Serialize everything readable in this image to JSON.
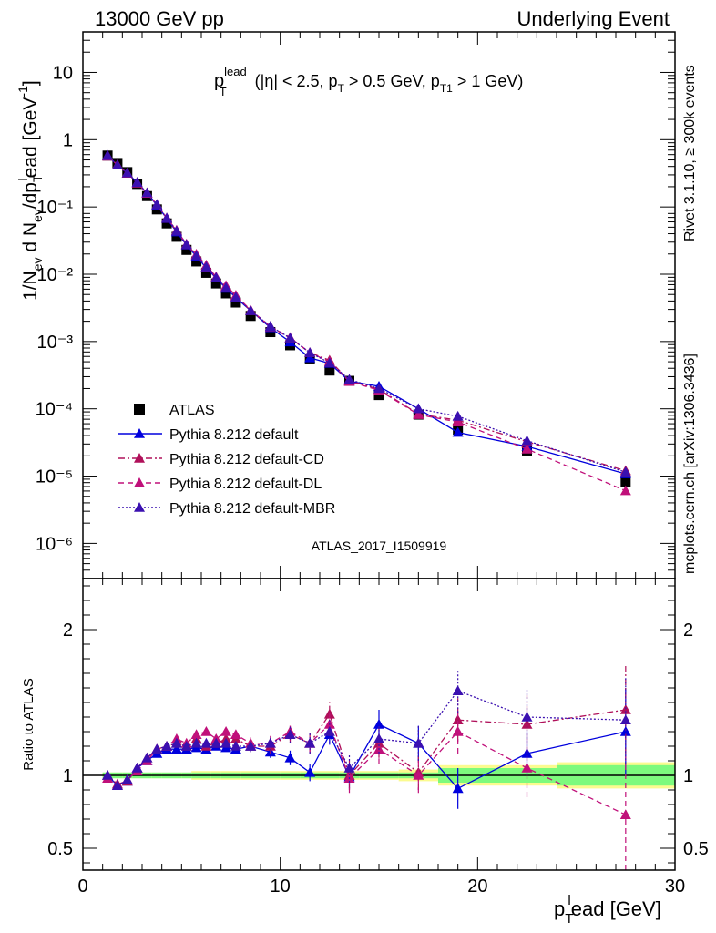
{
  "header": {
    "left": "13000 GeV pp",
    "right": "Underlying Event"
  },
  "side": {
    "rivet": "Rivet 3.1.10, ≥ 300k events",
    "mcplots": "mcplots.cern.ch [arXiv:1306.3436]"
  },
  "title": {
    "p": "p",
    "sup": "lead",
    "sub": "T",
    "rest_a": " (|η| < 2.5, p",
    "sub2": "T",
    "rest_b": " > 0.5 GeV, p",
    "sub3": "T1",
    "rest_c": " > 1 GeV)"
  },
  "analysis_id": "ATLAS_2017_I1509919",
  "ylabel_main": {
    "a": "1/N",
    "sub1": "ev",
    "b": " d N",
    "sub2": "ev",
    "c": "/dp",
    "sub3": "T",
    "sup3": "l",
    "d": "ead [GeV",
    "sup4": "-1",
    "e": "]"
  },
  "ylabel_ratio": "Ratio to ATLAS",
  "xlabel": {
    "p": "p",
    "sub": "T",
    "sup": "l",
    "rest": "ead [GeV]"
  },
  "colors": {
    "atlas": "#000000",
    "default": "#0000dd",
    "cd": "#b0105a",
    "dl": "#c0107a",
    "mbr": "#3b10b0",
    "band_inner": "#7dfa7d",
    "band_outer": "#fbfb8f",
    "analysis_id": "#a0a0a0",
    "side_text": "#888888"
  },
  "chart_data": {
    "type": "scatter",
    "x_range": [
      0,
      30
    ],
    "main_y_log": true,
    "main_y_range": [
      3e-07,
      40
    ],
    "ratio_y_range": [
      0.35,
      2.35
    ],
    "x_ticks": [
      "0",
      "10",
      "20",
      "30"
    ],
    "main_y_ticks": [
      "10",
      "1",
      "10⁻¹",
      "10⁻²",
      "10⁻³",
      "10⁻⁴",
      "10⁻⁵",
      "10⁻⁶"
    ],
    "ratio_y_ticks": [
      "2",
      "1",
      "0.5"
    ],
    "x": [
      1.25,
      1.75,
      2.25,
      2.75,
      3.25,
      3.75,
      4.25,
      4.75,
      5.25,
      5.75,
      6.25,
      6.75,
      7.25,
      7.75,
      8.5,
      9.5,
      10.5,
      11.5,
      12.5,
      13.5,
      15.0,
      17.0,
      19.0,
      22.5,
      27.5
    ],
    "x_edges": [
      1.0,
      1.5,
      2.0,
      2.5,
      3.0,
      3.5,
      4.0,
      4.5,
      5.0,
      5.5,
      6.0,
      6.5,
      7.0,
      7.5,
      8.0,
      9.0,
      10.0,
      11.0,
      12.0,
      13.0,
      14.0,
      16.0,
      18.0,
      21.0,
      24.0,
      31.0
    ],
    "atlas": {
      "name": "ATLAS",
      "values": [
        0.58,
        0.45,
        0.33,
        0.22,
        0.145,
        0.092,
        0.057,
        0.036,
        0.023,
        0.0155,
        0.0105,
        0.0073,
        0.0052,
        0.0038,
        0.0024,
        0.00138,
        0.00088,
        0.00056,
        0.00037,
        0.00026,
        0.00016,
        8.2e-05,
        4.9e-05,
        2.4e-05,
        8.3e-06
      ],
      "band_inner": [
        0.02,
        0.02,
        0.02,
        0.02,
        0.02,
        0.02,
        0.02,
        0.02,
        0.02,
        0.02,
        0.02,
        0.02,
        0.02,
        0.02,
        0.02,
        0.02,
        0.02,
        0.02,
        0.02,
        0.02,
        0.02,
        0.02,
        0.05,
        0.05,
        0.07
      ],
      "band_outer": [
        0.02,
        0.02,
        0.02,
        0.02,
        0.02,
        0.02,
        0.02,
        0.02,
        0.02,
        0.03,
        0.03,
        0.03,
        0.03,
        0.03,
        0.03,
        0.03,
        0.03,
        0.03,
        0.03,
        0.03,
        0.03,
        0.04,
        0.07,
        0.07,
        0.09
      ]
    },
    "series": [
      {
        "name": "Pythia 8.212 default",
        "style": "solid",
        "ratio": [
          1.0,
          0.93,
          0.96,
          1.05,
          1.1,
          1.15,
          1.18,
          1.18,
          1.18,
          1.19,
          1.18,
          1.2,
          1.19,
          1.18,
          1.2,
          1.16,
          1.12,
          1.02,
          1.28,
          0.99,
          1.35,
          1.22,
          0.91,
          1.15,
          1.3
        ],
        "err": [
          0.02,
          0.01,
          0.01,
          0.01,
          0.01,
          0.01,
          0.01,
          0.01,
          0.02,
          0.02,
          0.02,
          0.02,
          0.02,
          0.02,
          0.03,
          0.04,
          0.05,
          0.06,
          0.07,
          0.08,
          0.1,
          0.12,
          0.14,
          0.15,
          0.3
        ]
      },
      {
        "name": "Pythia 8.212 default-CD",
        "style": "dashdot",
        "ratio": [
          1.0,
          0.94,
          0.96,
          1.05,
          1.12,
          1.18,
          1.2,
          1.22,
          1.2,
          1.25,
          1.2,
          1.22,
          1.25,
          1.25,
          1.2,
          1.2,
          1.28,
          1.22,
          1.42,
          1.0,
          1.22,
          1.02,
          1.38,
          1.35,
          1.45
        ],
        "err": [
          0.02,
          0.01,
          0.01,
          0.01,
          0.01,
          0.01,
          0.01,
          0.02,
          0.02,
          0.02,
          0.02,
          0.03,
          0.03,
          0.03,
          0.04,
          0.05,
          0.06,
          0.07,
          0.08,
          0.1,
          0.1,
          0.12,
          0.15,
          0.2,
          0.3
        ]
      },
      {
        "name": "Pythia 8.212 default-DL",
        "style": "dashed",
        "ratio": [
          0.98,
          0.93,
          0.97,
          1.03,
          1.1,
          1.18,
          1.2,
          1.25,
          1.22,
          1.28,
          1.3,
          1.25,
          1.3,
          1.28,
          1.22,
          1.22,
          1.3,
          1.22,
          1.35,
          0.98,
          1.18,
          1.0,
          1.3,
          1.05,
          0.73
        ],
        "err": [
          0.02,
          0.01,
          0.01,
          0.01,
          0.01,
          0.01,
          0.01,
          0.02,
          0.02,
          0.02,
          0.02,
          0.03,
          0.03,
          0.03,
          0.04,
          0.05,
          0.06,
          0.07,
          0.08,
          0.1,
          0.1,
          0.12,
          0.15,
          0.2,
          0.4
        ]
      },
      {
        "name": "Pythia 8.212 default-MBR",
        "style": "dotted",
        "ratio": [
          1.0,
          0.93,
          0.97,
          1.05,
          1.12,
          1.18,
          1.2,
          1.22,
          1.2,
          1.22,
          1.22,
          1.22,
          1.22,
          1.2,
          1.2,
          1.22,
          1.28,
          1.22,
          1.3,
          1.05,
          1.25,
          1.22,
          1.58,
          1.4,
          1.38
        ],
        "err": [
          0.02,
          0.01,
          0.01,
          0.01,
          0.01,
          0.01,
          0.01,
          0.02,
          0.02,
          0.02,
          0.02,
          0.03,
          0.03,
          0.03,
          0.04,
          0.05,
          0.06,
          0.07,
          0.08,
          0.1,
          0.1,
          0.12,
          0.15,
          0.2,
          0.3
        ]
      }
    ]
  }
}
